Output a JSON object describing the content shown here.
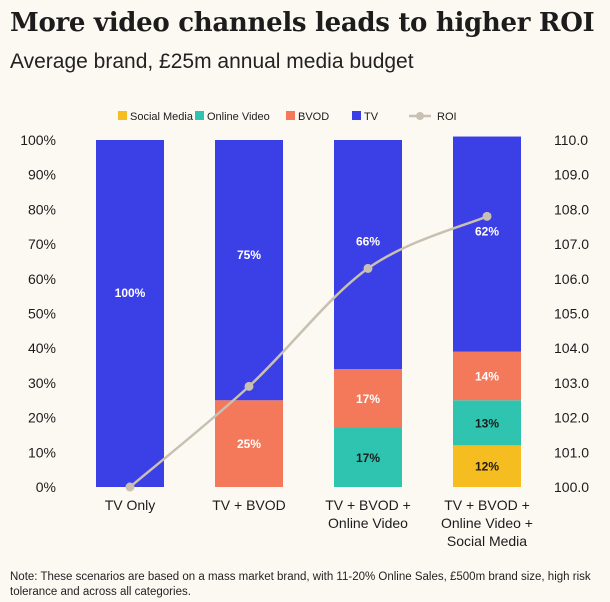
{
  "title": "More video channels leads to higher ROI",
  "subtitle": "Average brand, £25m annual media budget",
  "note": "Note: These scenarios are based on a mass market brand, with 11-20% Online Sales, £500m brand size, high risk tolerance and across all categories.",
  "colors": {
    "social_media": "#f5bd1f",
    "online_video": "#2ec4b0",
    "bvod": "#f4785a",
    "tv": "#3b3fe6",
    "roi": "#c9c0b2"
  },
  "chart_data": {
    "type": "bar",
    "stacked": true,
    "categories": [
      [
        "TV Only"
      ],
      [
        "TV + BVOD"
      ],
      [
        "TV + BVOD +",
        "Online Video"
      ],
      [
        "TV + BVOD +",
        "Online Video +",
        "Social Media"
      ]
    ],
    "series": [
      {
        "name": "Social Media",
        "color": "#f5bd1f",
        "values": [
          0,
          0,
          0,
          12
        ],
        "labels": [
          "",
          "",
          "",
          "12%"
        ],
        "label_color": "#1c1c1c"
      },
      {
        "name": "Online Video",
        "color": "#2ec4b0",
        "values": [
          0,
          0,
          17,
          13
        ],
        "labels": [
          "",
          "",
          "17%",
          "13%"
        ],
        "label_color": "#1c1c1c"
      },
      {
        "name": "BVOD",
        "color": "#f4785a",
        "values": [
          0,
          25,
          17,
          14
        ],
        "labels": [
          "",
          "25%",
          "17%",
          "14%"
        ],
        "label_color": "#ffffff"
      },
      {
        "name": "TV",
        "color": "#3b3fe6",
        "values": [
          100,
          75,
          66,
          62
        ],
        "labels": [
          "100%",
          "75%",
          "66%",
          "62%"
        ],
        "label_color": "#ffffff"
      }
    ],
    "line": {
      "name": "ROI",
      "color": "#c9c0b2",
      "values": [
        100.0,
        102.9,
        106.3,
        107.8
      ]
    },
    "left_axis": {
      "ylim": [
        0,
        100
      ],
      "ticks": [
        "0%",
        "10%",
        "20%",
        "30%",
        "40%",
        "50%",
        "60%",
        "70%",
        "80%",
        "90%",
        "100%"
      ]
    },
    "right_axis": {
      "ylim": [
        100,
        110
      ],
      "ticks": [
        "100.0",
        "101.0",
        "102.0",
        "103.0",
        "104.0",
        "105.0",
        "106.0",
        "107.0",
        "108.0",
        "109.0",
        "110.0"
      ]
    },
    "legend": [
      "Social Media",
      "Online Video",
      "BVOD",
      "TV",
      "ROI"
    ],
    "legend_position": "top",
    "grid": false
  }
}
